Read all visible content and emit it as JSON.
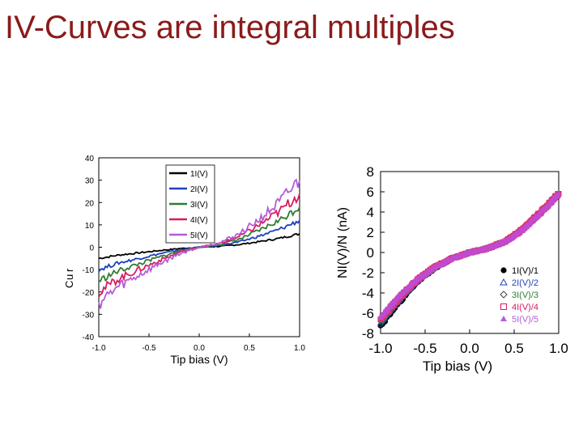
{
  "title": "IV-Curves are integral multiples",
  "colors": {
    "title": "#8b1a1a",
    "series": [
      "#000000",
      "#1f3fbf",
      "#2e7d32",
      "#d81b60",
      "#b45cd6"
    ]
  },
  "chart_data": [
    {
      "type": "line",
      "xlabel": "Tip bias (V)",
      "ylabel": "",
      "xlim": [
        -1.0,
        1.0
      ],
      "ylim": [
        -40,
        40
      ],
      "xticks": [
        "-1.0",
        "-0.5",
        "0.0",
        "0.5",
        "1.0"
      ],
      "yticks": [
        "40",
        "30",
        "20",
        "10",
        "0",
        "-10",
        "-20",
        "-30",
        "-40"
      ],
      "legend_position": "top-right",
      "x": [
        -1.0,
        -0.8,
        -0.6,
        -0.4,
        -0.2,
        0.0,
        0.2,
        0.4,
        0.6,
        0.8,
        1.0
      ],
      "series": [
        {
          "name": "1I(V)",
          "values": [
            -5,
            -3.5,
            -2.5,
            -1.5,
            -0.6,
            0,
            0.4,
            1.2,
            2.5,
            4,
            6
          ]
        },
        {
          "name": "2I(V)",
          "values": [
            -10,
            -7,
            -5,
            -3,
            -1.2,
            0,
            0.8,
            2.4,
            5,
            8,
            12
          ]
        },
        {
          "name": "3I(V)",
          "values": [
            -15,
            -10.5,
            -7.5,
            -4.5,
            -1.8,
            0,
            1.2,
            3.6,
            7.5,
            12,
            18
          ]
        },
        {
          "name": "4I(V)",
          "values": [
            -20,
            -14,
            -10,
            -6,
            -2.4,
            0,
            1.6,
            4.8,
            10,
            16,
            24
          ]
        },
        {
          "name": "5I(V)",
          "values": [
            -25,
            -17.5,
            -12.5,
            -7.5,
            -3,
            0,
            2,
            6,
            12.5,
            20,
            30
          ]
        }
      ],
      "partial_ylabel_glyphs": [
        "C",
        "u",
        "r"
      ]
    },
    {
      "type": "scatter",
      "xlabel": "Tip bias (V)",
      "ylabel": "NI(V)/N (nA)",
      "xlim": [
        -1.0,
        1.0
      ],
      "ylim": [
        -8,
        8
      ],
      "xticks": [
        "-1.0",
        "-0.5",
        "0.0",
        "0.5",
        "1.0"
      ],
      "yticks": [
        "8",
        "6",
        "4",
        "2",
        "0",
        "-2",
        "-4",
        "-6",
        "-8"
      ],
      "legend_position": "bottom-right",
      "x": [
        -1.0,
        -0.8,
        -0.6,
        -0.4,
        -0.2,
        0.0,
        0.2,
        0.4,
        0.6,
        0.8,
        1.0
      ],
      "series": [
        {
          "name": "1I(V)/1",
          "marker": "filled-circle",
          "values": [
            -7.2,
            -5.0,
            -3.0,
            -1.6,
            -0.6,
            0,
            0.4,
            1.1,
            2.3,
            4.0,
            5.8
          ]
        },
        {
          "name": "2I(V)/2",
          "marker": "open-triangle",
          "values": [
            -7.0,
            -4.9,
            -3.0,
            -1.6,
            -0.6,
            0,
            0.4,
            1.1,
            2.3,
            4.0,
            5.8
          ]
        },
        {
          "name": "3I(V)/3",
          "marker": "open-diamond",
          "values": [
            -6.9,
            -4.8,
            -2.9,
            -1.6,
            -0.6,
            0,
            0.4,
            1.1,
            2.3,
            4.0,
            5.8
          ]
        },
        {
          "name": "4I(V)/4",
          "marker": "open-square",
          "values": [
            -6.6,
            -4.6,
            -2.8,
            -1.5,
            -0.6,
            0,
            0.4,
            1.1,
            2.3,
            4.0,
            5.8
          ]
        },
        {
          "name": "5I(V)/5",
          "marker": "filled-triangle",
          "values": [
            -6.3,
            -4.4,
            -2.7,
            -1.5,
            -0.6,
            0,
            0.4,
            1.1,
            2.3,
            4.0,
            5.8
          ]
        }
      ]
    }
  ]
}
